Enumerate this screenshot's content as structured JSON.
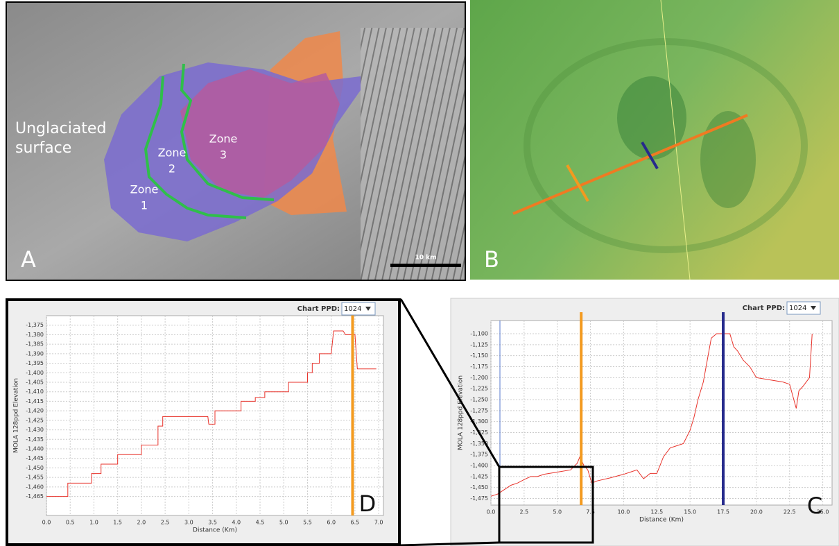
{
  "panels": {
    "a": {
      "letter": "A",
      "surface_label": [
        "Unglaciated",
        "surface"
      ],
      "zones": [
        [
          "Zone",
          "1"
        ],
        [
          "Zone",
          "2"
        ],
        [
          "Zone",
          "3"
        ]
      ],
      "scale_label": "10 km"
    },
    "b": {
      "letter": "B"
    }
  },
  "chart_data": [
    {
      "type": "line",
      "panel_label": "D",
      "control_label": "Chart PPD:",
      "control_value": "1024",
      "x_label": "Distance (Km)",
      "y_label": "MOLA 128ppd Elevation",
      "color": "#e8322a",
      "grid": true,
      "x": [
        0,
        0.45,
        0.45,
        0.95,
        0.95,
        1.15,
        1.15,
        1.5,
        1.5,
        2.0,
        2.0,
        2.35,
        2.35,
        2.45,
        2.45,
        3.4,
        3.42,
        3.55,
        3.55,
        4.1,
        4.1,
        4.4,
        4.4,
        4.6,
        4.6,
        5.1,
        5.1,
        5.5,
        5.5,
        5.6,
        5.6,
        5.75,
        5.75,
        6.0,
        6.05,
        6.25,
        6.3,
        6.5,
        6.55,
        6.95
      ],
      "values": [
        -1465,
        -1465,
        -1458,
        -1458,
        -1453,
        -1453,
        -1448,
        -1448,
        -1443,
        -1443,
        -1438,
        -1438,
        -1428,
        -1428,
        -1423,
        -1423,
        -1427,
        -1427,
        -1420,
        -1420,
        -1415,
        -1415,
        -1413,
        -1413,
        -1410,
        -1410,
        -1405,
        -1405,
        -1400,
        -1400,
        -1395,
        -1395,
        -1390,
        -1390,
        -1378,
        -1378,
        -1380,
        -1380,
        -1398,
        -1398
      ],
      "markers": [
        {
          "x": 6.45,
          "color": "#f39a1f"
        }
      ],
      "xlim": [
        0,
        7.1
      ],
      "ylim": [
        -1475,
        -1370
      ],
      "xticks": [
        {
          "value": 0,
          "label": "0.0"
        },
        {
          "value": 0.5,
          "label": "0.5"
        },
        {
          "value": 1,
          "label": "1.0"
        },
        {
          "value": 1.5,
          "label": "1.5"
        },
        {
          "value": 2,
          "label": "2.0"
        },
        {
          "value": 2.5,
          "label": "2.5"
        },
        {
          "value": 3,
          "label": "3.0"
        },
        {
          "value": 3.5,
          "label": "3.5"
        },
        {
          "value": 4,
          "label": "4.0"
        },
        {
          "value": 4.5,
          "label": "4.5"
        },
        {
          "value": 5,
          "label": "5.0"
        },
        {
          "value": 5.5,
          "label": "5.5"
        },
        {
          "value": 6,
          "label": "6.0"
        },
        {
          "value": 6.5,
          "label": "6.5"
        },
        {
          "value": 7,
          "label": "7.0"
        }
      ],
      "yticks": [
        {
          "value": -1375,
          "label": "-1,375"
        },
        {
          "value": -1380,
          "label": "-1,380"
        },
        {
          "value": -1385,
          "label": "-1,385"
        },
        {
          "value": -1390,
          "label": "-1,390"
        },
        {
          "value": -1395,
          "label": "-1,395"
        },
        {
          "value": -1400,
          "label": "-1,400"
        },
        {
          "value": -1405,
          "label": "-1,405"
        },
        {
          "value": -1410,
          "label": "-1,410"
        },
        {
          "value": -1415,
          "label": "-1,415"
        },
        {
          "value": -1420,
          "label": "-1,420"
        },
        {
          "value": -1425,
          "label": "-1,425"
        },
        {
          "value": -1430,
          "label": "-1,430"
        },
        {
          "value": -1435,
          "label": "-1,435"
        },
        {
          "value": -1440,
          "label": "-1,440"
        },
        {
          "value": -1445,
          "label": "-1,445"
        },
        {
          "value": -1450,
          "label": "-1,450"
        },
        {
          "value": -1455,
          "label": "-1,455"
        },
        {
          "value": -1460,
          "label": "-1,460"
        },
        {
          "value": -1465,
          "label": "-1,465"
        }
      ]
    },
    {
      "type": "line",
      "panel_label": "C",
      "control_label": "Chart PPD:",
      "control_value": "1024",
      "x_label": "Distance (Km)",
      "y_label": "MOLA 128ppd Elevation",
      "color": "#e8322a",
      "grid": true,
      "x": [
        0,
        0.5,
        1,
        1.5,
        2,
        2.5,
        3,
        3.5,
        4,
        5,
        6,
        6.5,
        6.7,
        7,
        7.3,
        7.6,
        8,
        9,
        10,
        10.5,
        11,
        11.5,
        12,
        12.5,
        13,
        13.5,
        14,
        14.5,
        15,
        15.3,
        15.6,
        16,
        16.3,
        16.6,
        17,
        17.5,
        18,
        18.3,
        18.6,
        19,
        19.5,
        20,
        21,
        22,
        22.5,
        23,
        23.2,
        23.5,
        24,
        24.2
      ],
      "values": [
        -1470,
        -1465,
        -1455,
        -1445,
        -1440,
        -1432,
        -1425,
        -1425,
        -1420,
        -1415,
        -1410,
        -1395,
        -1380,
        -1400,
        -1410,
        -1440,
        -1435,
        -1428,
        -1420,
        -1415,
        -1410,
        -1430,
        -1418,
        -1418,
        -1380,
        -1360,
        -1355,
        -1350,
        -1320,
        -1290,
        -1250,
        -1210,
        -1160,
        -1110,
        -1100,
        -1100,
        -1100,
        -1130,
        -1140,
        -1160,
        -1175,
        -1200,
        -1205,
        -1210,
        -1215,
        -1270,
        -1230,
        -1220,
        -1200,
        -1100
      ],
      "markers": [
        {
          "x": 6.8,
          "color": "#f39a1f"
        },
        {
          "x": 17.5,
          "color": "#262a8c"
        }
      ],
      "xlim": [
        0,
        25.7
      ],
      "ylim": [
        -1490,
        -1070
      ],
      "xticks": [
        {
          "value": 0,
          "label": "0.0"
        },
        {
          "value": 2.5,
          "label": "2.5"
        },
        {
          "value": 5,
          "label": "5.0"
        },
        {
          "value": 7.5,
          "label": "7.5"
        },
        {
          "value": 10,
          "label": "10.0"
        },
        {
          "value": 12.5,
          "label": "12.5"
        },
        {
          "value": 15,
          "label": "15.0"
        },
        {
          "value": 17.5,
          "label": "17.5"
        },
        {
          "value": 20,
          "label": "20.0"
        },
        {
          "value": 22.5,
          "label": "22.5"
        },
        {
          "value": 25,
          "label": "25.0"
        }
      ],
      "yticks": [
        {
          "value": -1100,
          "label": "-1,100"
        },
        {
          "value": -1125,
          "label": "-1,125"
        },
        {
          "value": -1150,
          "label": "-1,150"
        },
        {
          "value": -1175,
          "label": "-1,175"
        },
        {
          "value": -1200,
          "label": "-1,200"
        },
        {
          "value": -1225,
          "label": "-1,225"
        },
        {
          "value": -1250,
          "label": "-1,250"
        },
        {
          "value": -1275,
          "label": "-1,275"
        },
        {
          "value": -1300,
          "label": "-1,300"
        },
        {
          "value": -1325,
          "label": "-1,325"
        },
        {
          "value": -1350,
          "label": "-1,350"
        },
        {
          "value": -1375,
          "label": "-1,375"
        },
        {
          "value": -1400,
          "label": "-1,400"
        },
        {
          "value": -1425,
          "label": "-1,425"
        },
        {
          "value": -1450,
          "label": "-1,450"
        },
        {
          "value": -1475,
          "label": "-1,475"
        }
      ]
    }
  ]
}
